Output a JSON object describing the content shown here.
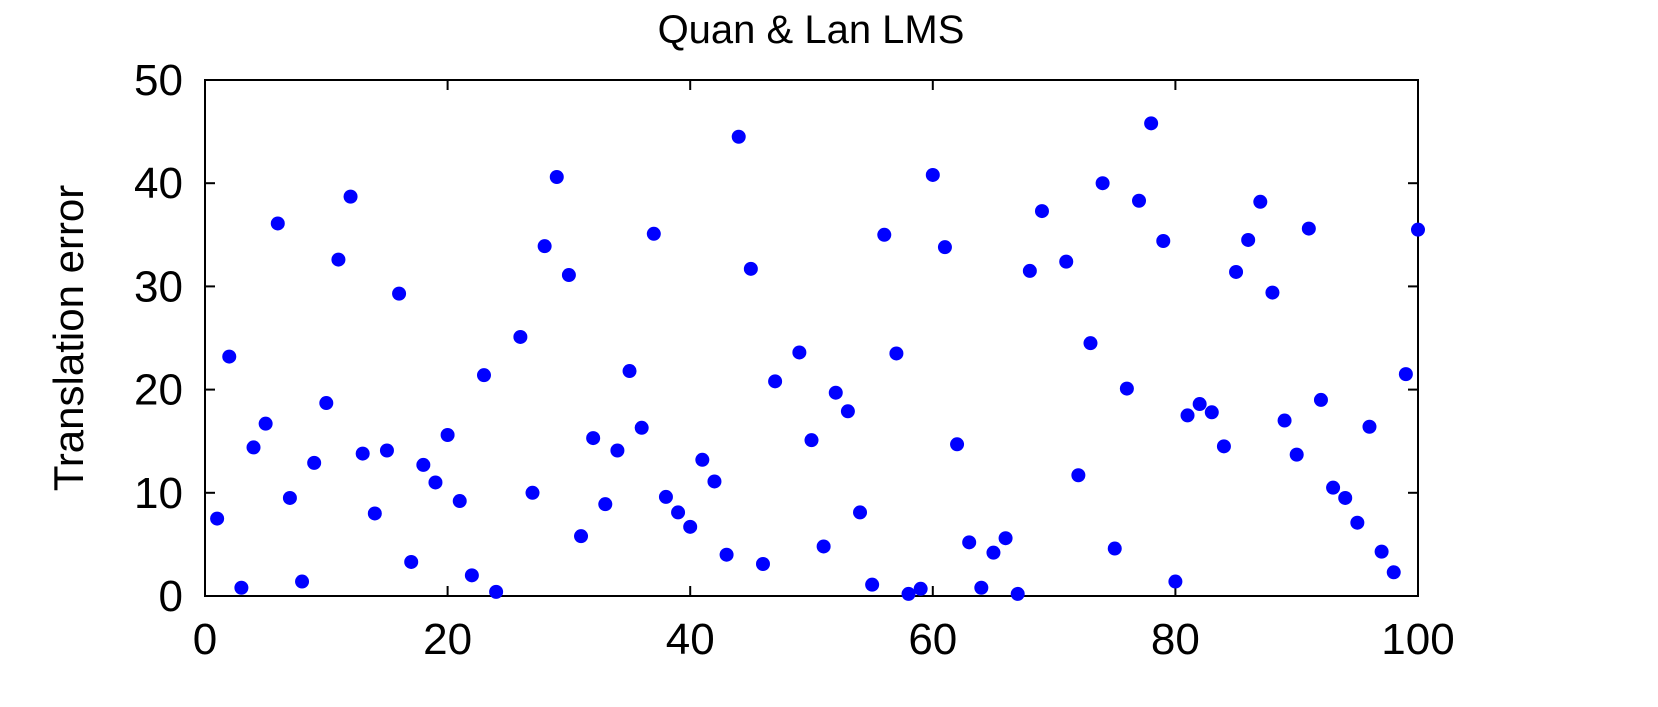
{
  "chart_data": {
    "type": "scatter",
    "title": "Quan & Lan LMS",
    "xlabel": "",
    "ylabel": "Translation error",
    "xlim": [
      0,
      100
    ],
    "ylim": [
      0,
      50
    ],
    "xticks": [
      0,
      20,
      40,
      60,
      80,
      100
    ],
    "yticks": [
      0,
      10,
      20,
      30,
      40,
      50
    ],
    "grid": false,
    "point_color": "#0000ff",
    "series": [
      {
        "x": [
          1,
          2,
          3,
          4,
          5,
          6,
          7,
          8,
          9,
          10,
          11,
          12,
          13,
          14,
          15,
          16,
          17,
          18,
          19,
          20,
          21,
          22,
          23,
          24,
          25,
          26,
          27,
          28,
          29,
          30,
          31,
          32,
          33,
          34,
          35,
          36,
          37,
          38,
          39,
          40,
          41,
          42,
          43,
          44,
          45,
          46,
          47,
          48,
          49,
          50,
          51,
          52,
          53,
          54,
          55,
          56,
          57,
          58,
          59,
          60,
          61,
          62,
          63,
          64,
          65,
          66,
          67,
          68,
          69,
          70,
          71,
          72,
          73,
          74,
          75,
          76,
          77,
          78,
          79,
          80,
          81,
          82,
          83,
          84,
          85,
          86,
          87,
          88,
          89,
          90,
          91,
          92,
          93,
          94,
          95,
          96,
          97,
          98,
          99,
          100
        ],
        "y": [
          7.5,
          23.2,
          0.8,
          14.4,
          16.7,
          36.1,
          9.5,
          1.4,
          12.9,
          18.7,
          32.6,
          38.7,
          13.8,
          8.0,
          14.1,
          29.3,
          3.3,
          12.7,
          11.0,
          15.6,
          9.2,
          2.0,
          21.4,
          0.4,
          null,
          25.1,
          10.0,
          33.9,
          40.6,
          31.1,
          5.8,
          15.3,
          8.9,
          14.1,
          21.8,
          16.3,
          35.1,
          9.6,
          8.1,
          6.7,
          13.2,
          11.1,
          4.0,
          44.5,
          31.7,
          3.1,
          20.8,
          null,
          23.6,
          15.1,
          4.8,
          19.7,
          17.9,
          8.1,
          1.1,
          35.0,
          23.5,
          0.2,
          0.7,
          40.8,
          33.8,
          14.7,
          5.2,
          0.8,
          4.2,
          5.6,
          0.2,
          31.5,
          37.3,
          null,
          32.4,
          11.7,
          24.5,
          40.0,
          4.6,
          20.1,
          38.3,
          45.8,
          34.4,
          1.4,
          17.5,
          18.6,
          17.8,
          14.5,
          31.4,
          34.5,
          38.2,
          29.4,
          17.0,
          13.7,
          35.6,
          19.0,
          10.5,
          9.5,
          7.1,
          16.4,
          4.3,
          2.3,
          21.5,
          35.5
        ]
      }
    ]
  }
}
